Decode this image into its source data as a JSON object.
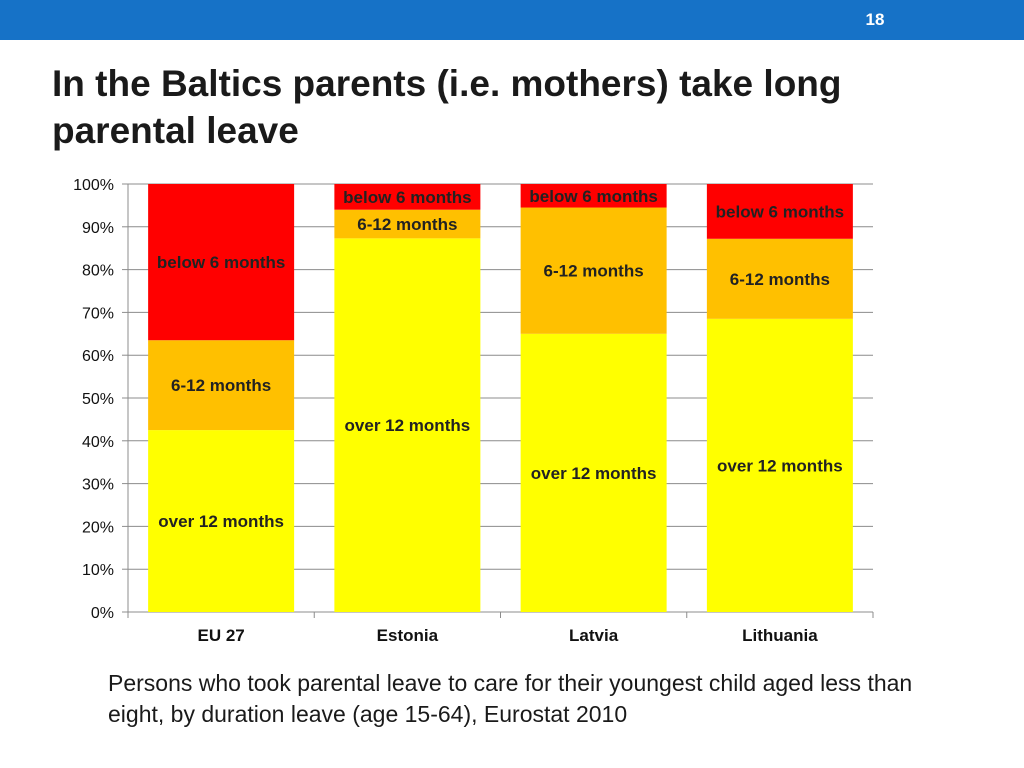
{
  "header": {
    "page_number": "18",
    "accent_color": "#1672c7"
  },
  "title": "In the Baltics parents (i.e. mothers) take long parental leave",
  "caption": "Persons who took parental leave to care for their youngest child aged less than eight, by duration leave (age 15-64), Eurostat 2010",
  "chart_data": {
    "type": "bar",
    "stacked": true,
    "categories": [
      "EU 27",
      "Estonia",
      "Latvia",
      "Lithuania"
    ],
    "series": [
      {
        "name": "over 12 months",
        "color": "#ffff00",
        "values": [
          42.5,
          87.3,
          65.0,
          68.5
        ]
      },
      {
        "name": "6-12 months",
        "color": "#ffc000",
        "values": [
          21.0,
          6.7,
          29.5,
          18.7
        ]
      },
      {
        "name": "below 6 months",
        "color": "#ff0000",
        "values": [
          36.5,
          6.0,
          5.5,
          12.8
        ]
      }
    ],
    "ylim": [
      0,
      100
    ],
    "yticks": [
      "0%",
      "10%",
      "20%",
      "30%",
      "40%",
      "50%",
      "60%",
      "70%",
      "80%",
      "90%",
      "100%"
    ],
    "grid": true,
    "legend": "none",
    "segment_labels": [
      [
        "over 12 months",
        "6-12 months",
        "below 6 months"
      ],
      [
        "over 12 months",
        "6-12 months",
        "below 6 months"
      ],
      [
        "over 12 months",
        "6-12 months",
        "below 6 months"
      ],
      [
        "over 12 months",
        "6-12 months",
        "below 6 months"
      ]
    ]
  }
}
